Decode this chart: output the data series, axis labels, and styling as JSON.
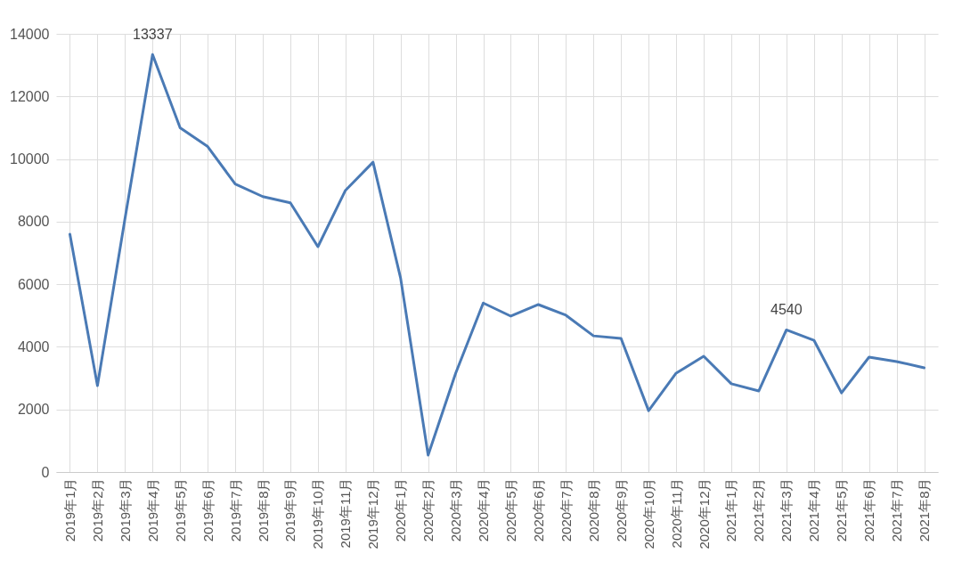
{
  "chart_data": {
    "type": "line",
    "categories": [
      "2019年1月",
      "2019年2月",
      "2019年3月",
      "2019年4月",
      "2019年5月",
      "2019年6月",
      "2019年7月",
      "2019年8月",
      "2019年9月",
      "2019年10月",
      "2019年11月",
      "2019年12月",
      "2020年1月",
      "2020年2月",
      "2020年3月",
      "2020年4月",
      "2020年5月",
      "2020年6月",
      "2020年7月",
      "2020年8月",
      "2020年9月",
      "2020年10月",
      "2020年11月",
      "2020年12月",
      "2021年1月",
      "2021年2月",
      "2021年3月",
      "2021年4月",
      "2021年5月",
      "2021年6月",
      "2021年7月",
      "2021年8月"
    ],
    "series": [
      {
        "color": "#4a7ab5",
        "values": [
          7600,
          2760,
          8100,
          13337,
          11000,
          10400,
          9200,
          8800,
          8600,
          7200,
          9000,
          9900,
          6200,
          540,
          3160,
          5400,
          4980,
          5350,
          5010,
          4350,
          4270,
          1960,
          3160,
          3700,
          2820,
          2590,
          4540,
          4210,
          2530,
          3670,
          3530,
          3330
        ],
        "value_labels": [
          null,
          null,
          null,
          "13337",
          null,
          null,
          null,
          null,
          null,
          null,
          null,
          null,
          null,
          null,
          null,
          null,
          null,
          null,
          null,
          null,
          null,
          null,
          null,
          null,
          null,
          null,
          "4540",
          null,
          null,
          null,
          null,
          null
        ]
      }
    ],
    "ylim": [
      0,
      14000
    ],
    "yticks": [
      0,
      2000,
      4000,
      6000,
      8000,
      10000,
      12000,
      14000
    ],
    "grid": true,
    "marker": "none",
    "line_style": "solid"
  }
}
